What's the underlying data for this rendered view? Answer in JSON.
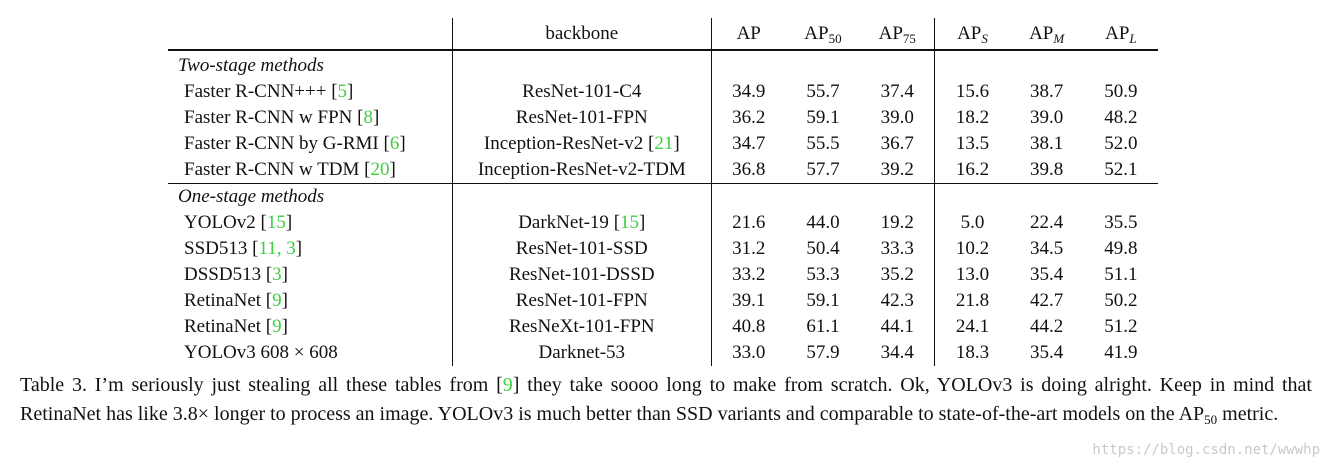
{
  "table": {
    "headers": {
      "method": "",
      "backbone": "backbone",
      "ap": "AP",
      "ap50_base": "AP",
      "ap50_sub": "50",
      "ap75_base": "AP",
      "ap75_sub": "75",
      "aps_base": "AP",
      "aps_sub": "S",
      "apm_base": "AP",
      "apm_sub": "M",
      "apl_base": "AP",
      "apl_sub": "L"
    },
    "sections": [
      {
        "title": "Two-stage methods",
        "rows": [
          {
            "method": "Faster R-CNN+++ ",
            "cite": "5",
            "backbone": "ResNet-101-C4",
            "bb_cite": "",
            "values": [
              "34.9",
              "55.7",
              "37.4",
              "15.6",
              "38.7",
              "50.9"
            ],
            "bold": []
          },
          {
            "method": "Faster R-CNN w FPN ",
            "cite": "8",
            "backbone": "ResNet-101-FPN",
            "bb_cite": "",
            "values": [
              "36.2",
              "59.1",
              "39.0",
              "18.2",
              "39.0",
              "48.2"
            ],
            "bold": []
          },
          {
            "method": "Faster R-CNN by G-RMI ",
            "cite": "6",
            "backbone": "Inception-ResNet-v2 ",
            "bb_cite": "21",
            "values": [
              "34.7",
              "55.5",
              "36.7",
              "13.5",
              "38.1",
              "52.0"
            ],
            "bold": []
          },
          {
            "method": "Faster R-CNN w TDM ",
            "cite": "20",
            "backbone": "Inception-ResNet-v2-TDM",
            "bb_cite": "",
            "values": [
              "36.8",
              "57.7",
              "39.2",
              "16.2",
              "39.8",
              "52.1"
            ],
            "bold": [
              5
            ]
          }
        ]
      },
      {
        "title": "One-stage methods",
        "rows": [
          {
            "method": "YOLOv2 ",
            "cite": "15",
            "backbone": "DarkNet-19 ",
            "bb_cite": "15",
            "values": [
              "21.6",
              "44.0",
              "19.2",
              "5.0",
              "22.4",
              "35.5"
            ],
            "bold": []
          },
          {
            "method": "SSD513 ",
            "cite": "11, 3",
            "backbone": "ResNet-101-SSD",
            "bb_cite": "",
            "values": [
              "31.2",
              "50.4",
              "33.3",
              "10.2",
              "34.5",
              "49.8"
            ],
            "bold": []
          },
          {
            "method": "DSSD513 ",
            "cite": "3",
            "backbone": "ResNet-101-DSSD",
            "bb_cite": "",
            "values": [
              "33.2",
              "53.3",
              "35.2",
              "13.0",
              "35.4",
              "51.1"
            ],
            "bold": []
          },
          {
            "method": "RetinaNet ",
            "cite": "9",
            "backbone": "ResNet-101-FPN",
            "bb_cite": "",
            "values": [
              "39.1",
              "59.1",
              "42.3",
              "21.8",
              "42.7",
              "50.2"
            ],
            "bold": []
          },
          {
            "method": "RetinaNet ",
            "cite": "9",
            "backbone": "ResNeXt-101-FPN",
            "bb_cite": "",
            "values": [
              "40.8",
              "61.1",
              "44.1",
              "24.1",
              "44.2",
              "51.2"
            ],
            "bold": [
              0,
              1,
              2,
              3,
              4
            ]
          },
          {
            "method": "YOLOv3 608 × 608",
            "cite": "",
            "backbone": "Darknet-53",
            "bb_cite": "",
            "values": [
              "33.0",
              "57.9",
              "34.4",
              "18.3",
              "35.4",
              "41.9"
            ],
            "bold": []
          }
        ]
      }
    ]
  },
  "caption": {
    "part1": "Table 3. I’m seriously just stealing all these tables from ",
    "cite": "9",
    "part2": " they take soooo long to make from scratch.  Ok, YOLOv3 is doing alright. Keep in mind that RetinaNet has like 3.8× longer to process an image.  YOLOv3 is much better than SSD variants and comparable to state-of-the-art models on the AP",
    "sub": "50",
    "part3": " metric."
  },
  "watermark": "https://blog.csdn.net/wwwhp",
  "colors": {
    "citation": "#3fce3f",
    "watermark": "#c9c9c9"
  }
}
